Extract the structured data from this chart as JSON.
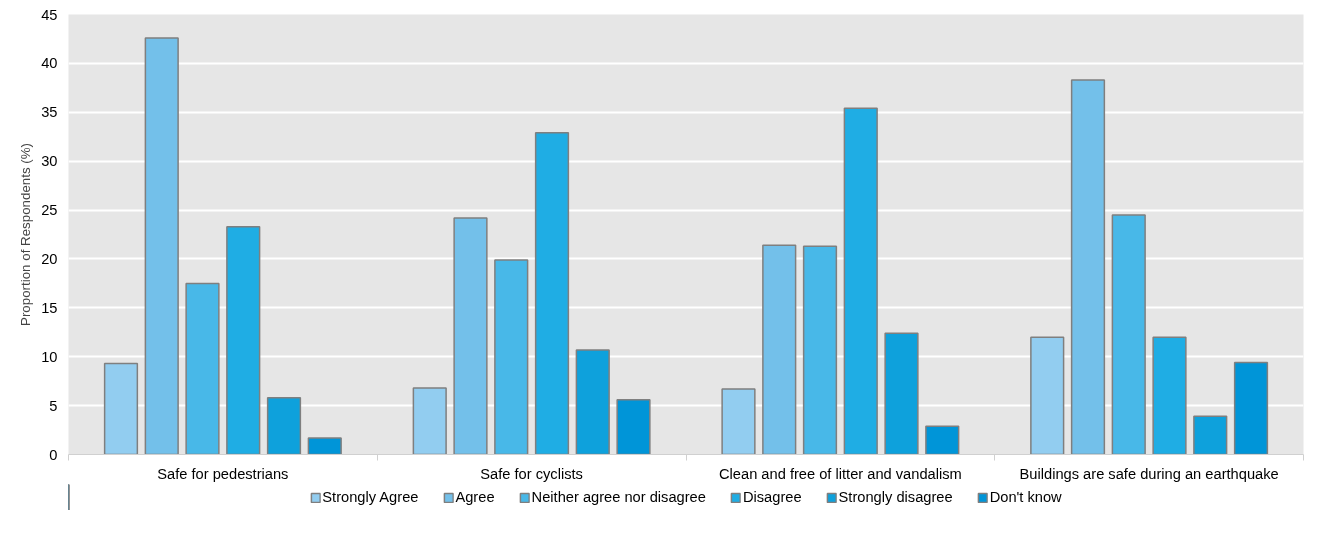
{
  "chart_data": {
    "type": "bar",
    "ylabel": "Proportion of Respondents (%)",
    "categories": [
      "Safe for pedestrians",
      "Safe for cyclists",
      "Clean and free of litter and vandalism",
      "Buildings are safe during an earthquake"
    ],
    "series": [
      {
        "name": "Strongly Agree",
        "color": "#92cdf0",
        "values": [
          9.3,
          6.8,
          6.7,
          12.0
        ]
      },
      {
        "name": "Agree",
        "color": "#73c0ea",
        "values": [
          42.6,
          24.2,
          21.4,
          38.3
        ]
      },
      {
        "name": "Neither agree nor disagree",
        "color": "#48b8e8",
        "values": [
          17.5,
          19.9,
          21.3,
          24.5
        ]
      },
      {
        "name": "Disagree",
        "color": "#1fade4",
        "values": [
          23.3,
          32.9,
          35.4,
          12.0
        ]
      },
      {
        "name": "Strongly disagree",
        "color": "#0ea1dc",
        "values": [
          5.8,
          10.7,
          12.4,
          3.9
        ]
      },
      {
        "name": "Don't know",
        "color": "#0095d8",
        "values": [
          1.7,
          5.6,
          2.9,
          9.4
        ]
      }
    ],
    "ylim": [
      0,
      45
    ],
    "yticks": [
      0,
      5,
      10,
      15,
      20,
      25,
      30,
      35,
      40,
      45
    ],
    "grid": "y",
    "legend": "bottom"
  }
}
